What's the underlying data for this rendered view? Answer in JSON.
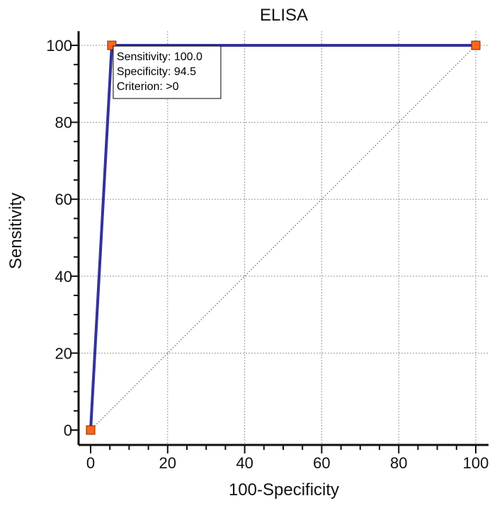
{
  "chart_data": {
    "type": "line",
    "title": "ELISA",
    "xlabel": "100-Specificity",
    "ylabel": "Sensitivity",
    "xlim": [
      0,
      100
    ],
    "ylim": [
      0,
      100
    ],
    "xticks": [
      0,
      20,
      40,
      60,
      80,
      100
    ],
    "yticks": [
      0,
      20,
      40,
      60,
      80,
      100
    ],
    "grid": true,
    "series": [
      {
        "x": [
          0,
          5.5,
          100
        ],
        "y": [
          0,
          100,
          100
        ],
        "color": "#333399",
        "marker_color": "#ff6619"
      }
    ],
    "reference_line": {
      "x": [
        0,
        100
      ],
      "y": [
        0,
        100
      ],
      "color": "#b22222",
      "style": "dotted"
    },
    "annotation": {
      "point": [
        5.5,
        100
      ],
      "lines": [
        "Sensitivity: 100.0",
        "Specificity: 94.5",
        "Criterion: >0"
      ]
    }
  }
}
